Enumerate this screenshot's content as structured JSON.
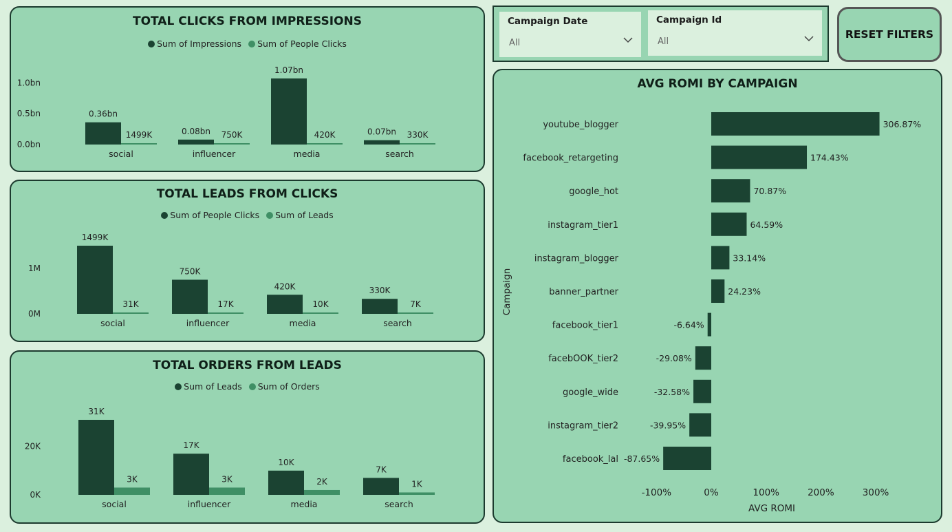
{
  "colors": {
    "dark": "#1b4332",
    "light": "#3f8f65",
    "panel": "#98d5b2",
    "bg": "#dbf0de"
  },
  "filters": {
    "date": {
      "label": "Campaign Date",
      "value": "All"
    },
    "id": {
      "label": "Campaign Id",
      "value": "All"
    }
  },
  "reset_label": "RESET FILTERS",
  "chart_data": [
    {
      "type": "bar",
      "title": "TOTAL CLICKS FROM IMPRESSIONS",
      "categories": [
        "social",
        "influencer",
        "media",
        "search"
      ],
      "series": [
        {
          "name": "Sum of Impressions",
          "values": [
            0.36,
            0.08,
            1.07,
            0.07
          ],
          "labels": [
            "0.36bn",
            "0.08bn",
            "1.07bn",
            "0.07bn"
          ]
        },
        {
          "name": "Sum of People Clicks",
          "values": [
            0.001499,
            0.00075,
            0.00042,
            0.00033
          ],
          "labels": [
            "1499K",
            "750K",
            "420K",
            "330K"
          ]
        }
      ],
      "yticks": [
        {
          "v": 0,
          "t": "0.0bn"
        },
        {
          "v": 0.5,
          "t": "0.5bn"
        },
        {
          "v": 1.0,
          "t": "1.0bn"
        }
      ],
      "ylim": [
        0,
        1.07
      ]
    },
    {
      "type": "bar",
      "title": "TOTAL LEADS FROM CLICKS",
      "categories": [
        "social",
        "influencer",
        "media",
        "search"
      ],
      "series": [
        {
          "name": "Sum of People Clicks",
          "values": [
            1499,
            750,
            420,
            330
          ],
          "labels": [
            "1499K",
            "750K",
            "420K",
            "330K"
          ]
        },
        {
          "name": "Sum of Leads",
          "values": [
            31,
            17,
            10,
            7
          ],
          "labels": [
            "31K",
            "17K",
            "10K",
            "7K"
          ]
        }
      ],
      "yticks": [
        {
          "v": 0,
          "t": "0M"
        },
        {
          "v": 1000,
          "t": "1M"
        }
      ],
      "ylim": [
        0,
        1499
      ]
    },
    {
      "type": "bar",
      "title": "TOTAL ORDERS FROM LEADS",
      "categories": [
        "social",
        "influencer",
        "media",
        "search"
      ],
      "series": [
        {
          "name": "Sum of Leads",
          "values": [
            31,
            17,
            10,
            7
          ],
          "labels": [
            "31K",
            "17K",
            "10K",
            "7K"
          ]
        },
        {
          "name": "Sum of Orders",
          "values": [
            3,
            3,
            2,
            1
          ],
          "labels": [
            "3K",
            "3K",
            "2K",
            "1K"
          ]
        }
      ],
      "yticks": [
        {
          "v": 0,
          "t": "0K"
        },
        {
          "v": 20,
          "t": "20K"
        }
      ],
      "ylim": [
        0,
        31
      ]
    },
    {
      "type": "bar",
      "orientation": "horizontal",
      "title": "AVG ROMI BY CAMPAIGN",
      "xlabel": "AVG ROMI",
      "ylabel": "Campaign",
      "categories": [
        "youtube_blogger",
        "facebook_retargeting",
        "google_hot",
        "instagram_tier1",
        "instagram_blogger",
        "banner_partner",
        "facebook_tier1",
        "facebOOK_tier2",
        "google_wide",
        "instagram_tier2",
        "facebook_lal"
      ],
      "values": [
        306.87,
        174.43,
        70.87,
        64.59,
        33.14,
        24.23,
        -6.64,
        -29.08,
        -32.58,
        -39.95,
        -87.65
      ],
      "labels": [
        "306.87%",
        "174.43%",
        "70.87%",
        "64.59%",
        "33.14%",
        "24.23%",
        "-6.64%",
        "-29.08%",
        "-32.58%",
        "-39.95%",
        "-87.65%"
      ],
      "xticks": [
        {
          "v": -100,
          "t": "-100%"
        },
        {
          "v": 0,
          "t": "0%"
        },
        {
          "v": 100,
          "t": "100%"
        },
        {
          "v": 200,
          "t": "200%"
        },
        {
          "v": 300,
          "t": "300%"
        }
      ],
      "xlim": [
        -100,
        306.87
      ]
    }
  ]
}
